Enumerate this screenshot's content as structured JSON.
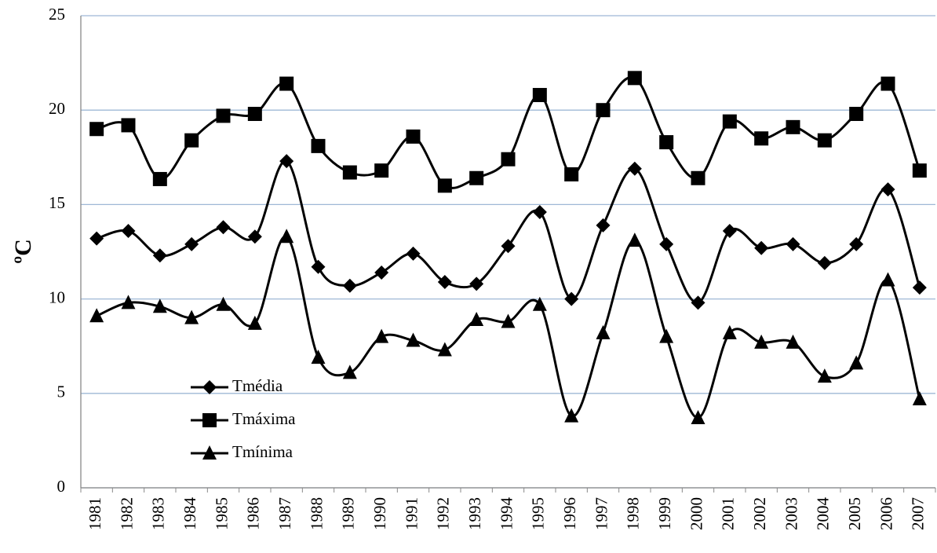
{
  "chart_data": {
    "type": "line",
    "smooth": true,
    "y_label": "ºC",
    "categories": [
      "1981",
      "1982",
      "1983",
      "1984",
      "1985",
      "1986",
      "1987",
      "1988",
      "1989",
      "1990",
      "1991",
      "1992",
      "1993",
      "1994",
      "1995",
      "1996",
      "1997",
      "1998",
      "1999",
      "2000",
      "2001",
      "2002",
      "2003",
      "2004",
      "2005",
      "2006",
      "2007"
    ],
    "series": [
      {
        "name": "Tmédia",
        "color": "#000000",
        "marker": "diamond",
        "values": [
          13.2,
          13.6,
          12.3,
          12.9,
          13.8,
          13.3,
          17.3,
          11.7,
          10.7,
          11.4,
          12.4,
          10.9,
          10.8,
          12.8,
          14.6,
          10.0,
          13.9,
          16.9,
          12.9,
          9.8,
          13.6,
          12.7,
          12.9,
          11.9,
          12.9,
          15.8,
          10.6
        ]
      },
      {
        "name": "Tmáxima",
        "color": "#000000",
        "marker": "square",
        "values": [
          19.0,
          19.2,
          16.35,
          18.4,
          19.7,
          19.8,
          21.4,
          18.1,
          16.7,
          16.8,
          18.6,
          16.0,
          16.4,
          17.4,
          20.8,
          16.6,
          20.0,
          21.7,
          18.3,
          16.4,
          19.4,
          18.5,
          19.1,
          18.4,
          19.8,
          21.4,
          16.8
        ]
      },
      {
        "name": "Tmínima",
        "color": "#000000",
        "marker": "triangle",
        "values": [
          9.1,
          9.8,
          9.6,
          9.0,
          9.7,
          8.7,
          13.3,
          6.9,
          6.1,
          8.0,
          7.8,
          7.3,
          8.9,
          8.8,
          9.7,
          3.8,
          8.2,
          13.1,
          8.0,
          3.7,
          8.2,
          7.7,
          7.7,
          5.9,
          6.6,
          11.0,
          4.7
        ]
      }
    ],
    "ylim": [
      0,
      25
    ],
    "yticks": [
      0,
      5,
      10,
      15,
      20,
      25
    ],
    "grid": true,
    "legend": "lower left"
  }
}
